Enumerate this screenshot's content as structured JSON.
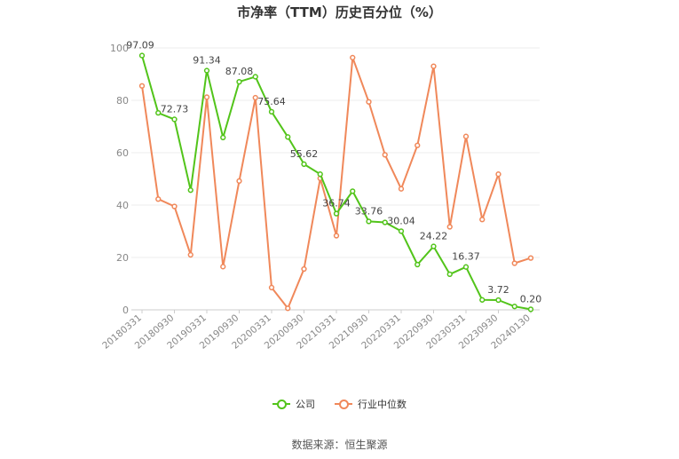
{
  "chart_data": {
    "type": "line",
    "title": "市净率（TTM）历史百分位（%）",
    "ylim": [
      0,
      100
    ],
    "yticks": [
      0,
      20,
      40,
      60,
      80,
      100
    ],
    "grid": true,
    "legend_position": "bottom",
    "categories": [
      "20180331",
      "20180630",
      "20180930",
      "20181231",
      "20190331",
      "20190630",
      "20190930",
      "20191231",
      "20200331",
      "20200630",
      "20200930",
      "20201231",
      "20210331",
      "20210630",
      "20210930",
      "20211231",
      "20220331",
      "20220630",
      "20220930",
      "20221231",
      "20230331",
      "20230630",
      "20230930",
      "20231231",
      "20240130"
    ],
    "tick_labels": [
      "20180331",
      "20180930",
      "20190331",
      "20190930",
      "20200331",
      "20200930",
      "20210331",
      "20210930",
      "20220331",
      "20220930",
      "20230331",
      "20230930",
      "20240130"
    ],
    "series": [
      {
        "name": "公司",
        "color": "#52c41a",
        "values": [
          97.09,
          75.2,
          72.73,
          45.7,
          91.34,
          65.8,
          87.08,
          89.0,
          75.64,
          66.0,
          55.62,
          51.8,
          36.74,
          45.3,
          33.76,
          33.4,
          30.04,
          17.3,
          24.22,
          13.6,
          16.37,
          3.8,
          3.72,
          1.3,
          0.2
        ],
        "data_labels": {
          "0": "97.09",
          "2": "72.73",
          "4": "91.34",
          "6": "87.08",
          "8": "75.64",
          "10": "55.62",
          "12": "36.74",
          "14": "33.76",
          "16": "30.04",
          "18": "24.22",
          "20": "16.37",
          "22": "3.72",
          "24": "0.20"
        }
      },
      {
        "name": "行业中位数",
        "color": "#f0885a",
        "values": [
          85.5,
          42.3,
          39.5,
          21.0,
          81.2,
          16.5,
          49.2,
          81.0,
          8.5,
          0.6,
          15.6,
          50.2,
          28.3,
          96.3,
          79.4,
          59.2,
          46.2,
          62.8,
          93.0,
          31.7,
          66.2,
          34.5,
          51.8,
          17.8,
          19.8
        ]
      }
    ]
  },
  "source_note": "数据来源：恒生聚源"
}
